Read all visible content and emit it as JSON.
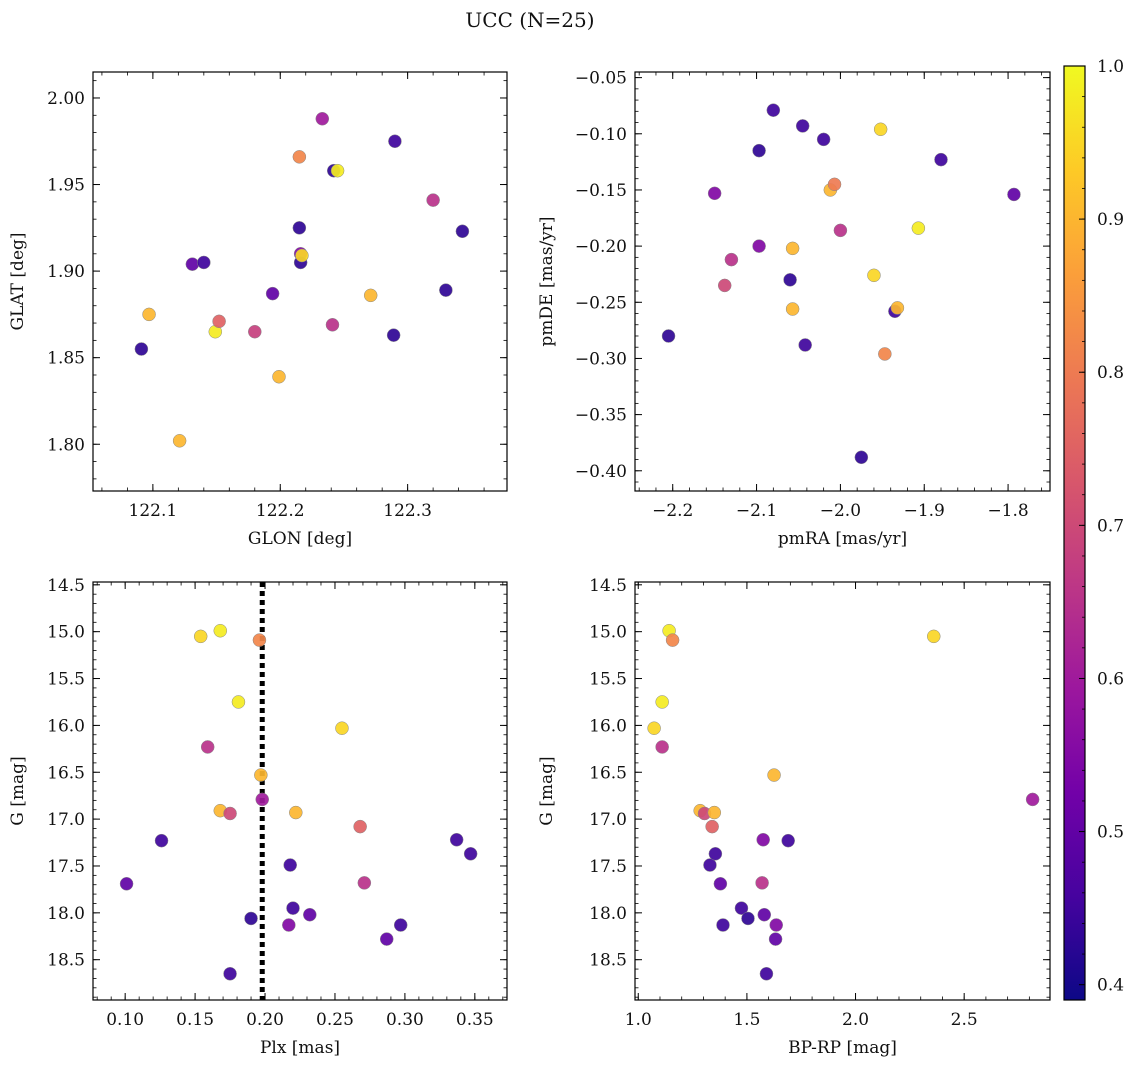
{
  "suptitle": "UCC (N=25)",
  "colorbar": {
    "min": 0.39,
    "max": 1.0,
    "ticks": [
      0.4,
      0.5,
      0.6,
      0.7,
      0.8,
      0.9,
      1.0
    ],
    "tick_labels": [
      "0.4",
      "0.5",
      "0.6",
      "0.7",
      "0.8",
      "0.9",
      "1.0"
    ],
    "colormap": "plasma",
    "colors": [
      "#0d0887",
      "#46039f",
      "#7201a8",
      "#9c179e",
      "#bd3786",
      "#d8576b",
      "#ed7953",
      "#fb9f3a",
      "#fdca26",
      "#f0f921"
    ]
  },
  "chart_data": [
    {
      "type": "scatter",
      "title": "",
      "xlabel": "GLON [deg]",
      "ylabel": "GLAT [deg]",
      "xlim": [
        122.053,
        122.378
      ],
      "ylim": [
        1.773,
        2.015
      ],
      "xticks": [
        122.1,
        122.2,
        122.3
      ],
      "xtick_labels": [
        "122.1",
        "122.2",
        "122.3"
      ],
      "yticks": [
        1.8,
        1.85,
        1.9,
        1.95,
        2.0
      ],
      "ytick_labels": [
        "1.80",
        "1.85",
        "1.90",
        "1.95",
        "2.00"
      ],
      "inverted_y": false,
      "points": [
        {
          "x": 122.091,
          "y": 1.855,
          "c": 0.43
        },
        {
          "x": 122.097,
          "y": 1.875,
          "c": 0.9
        },
        {
          "x": 122.121,
          "y": 1.802,
          "c": 0.9
        },
        {
          "x": 122.131,
          "y": 1.904,
          "c": 0.5
        },
        {
          "x": 122.14,
          "y": 1.905,
          "c": 0.45
        },
        {
          "x": 122.149,
          "y": 1.865,
          "c": 0.98
        },
        {
          "x": 122.152,
          "y": 1.871,
          "c": 0.75
        },
        {
          "x": 122.18,
          "y": 1.865,
          "c": 0.68
        },
        {
          "x": 122.194,
          "y": 1.887,
          "c": 0.5
        },
        {
          "x": 122.199,
          "y": 1.839,
          "c": 0.9
        },
        {
          "x": 122.215,
          "y": 1.925,
          "c": 0.43
        },
        {
          "x": 122.215,
          "y": 1.966,
          "c": 0.82
        },
        {
          "x": 122.216,
          "y": 1.91,
          "c": 0.55
        },
        {
          "x": 122.216,
          "y": 1.905,
          "c": 0.43
        },
        {
          "x": 122.217,
          "y": 1.909,
          "c": 0.95
        },
        {
          "x": 122.233,
          "y": 1.988,
          "c": 0.6
        },
        {
          "x": 122.241,
          "y": 1.869,
          "c": 0.65
        },
        {
          "x": 122.242,
          "y": 1.958,
          "c": 0.43
        },
        {
          "x": 122.245,
          "y": 1.958,
          "c": 0.98
        },
        {
          "x": 122.271,
          "y": 1.886,
          "c": 0.9
        },
        {
          "x": 122.289,
          "y": 1.863,
          "c": 0.43
        },
        {
          "x": 122.29,
          "y": 1.975,
          "c": 0.45
        },
        {
          "x": 122.32,
          "y": 1.941,
          "c": 0.65
        },
        {
          "x": 122.33,
          "y": 1.889,
          "c": 0.43
        },
        {
          "x": 122.343,
          "y": 1.923,
          "c": 0.43
        }
      ]
    },
    {
      "type": "scatter",
      "title": "",
      "xlabel": "pmRA [mas/yr]",
      "ylabel": "pmDE [mas/yr]",
      "xlim": [
        -2.245,
        -1.75
      ],
      "ylim": [
        -0.418,
        -0.045
      ],
      "xticks": [
        -2.2,
        -2.1,
        -2.0,
        -1.9,
        -1.8
      ],
      "xtick_labels": [
        "−2.2",
        "−2.1",
        "−2.0",
        "−1.9",
        "−1.8"
      ],
      "yticks": [
        -0.4,
        -0.35,
        -0.3,
        -0.25,
        -0.2,
        -0.15,
        -0.1,
        -0.05
      ],
      "ytick_labels": [
        "−0.40",
        "−0.35",
        "−0.30",
        "−0.25",
        "−0.20",
        "−0.15",
        "−0.10",
        "−0.05"
      ],
      "inverted_y": false,
      "points": [
        {
          "x": -2.205,
          "y": -0.28,
          "c": 0.43
        },
        {
          "x": -2.15,
          "y": -0.153,
          "c": 0.55
        },
        {
          "x": -2.138,
          "y": -0.235,
          "c": 0.7
        },
        {
          "x": -2.13,
          "y": -0.212,
          "c": 0.65
        },
        {
          "x": -2.097,
          "y": -0.115,
          "c": 0.43
        },
        {
          "x": -2.097,
          "y": -0.2,
          "c": 0.55
        },
        {
          "x": -2.08,
          "y": -0.079,
          "c": 0.45
        },
        {
          "x": -2.06,
          "y": -0.23,
          "c": 0.43
        },
        {
          "x": -2.057,
          "y": -0.202,
          "c": 0.9
        },
        {
          "x": -2.057,
          "y": -0.256,
          "c": 0.9
        },
        {
          "x": -2.045,
          "y": -0.093,
          "c": 0.45
        },
        {
          "x": -2.042,
          "y": -0.288,
          "c": 0.45
        },
        {
          "x": -2.02,
          "y": -0.105,
          "c": 0.45
        },
        {
          "x": -2.012,
          "y": -0.15,
          "c": 0.9
        },
        {
          "x": -2.007,
          "y": -0.145,
          "c": 0.8
        },
        {
          "x": -2.0,
          "y": -0.186,
          "c": 0.65
        },
        {
          "x": -1.975,
          "y": -0.388,
          "c": 0.43
        },
        {
          "x": -1.96,
          "y": -0.226,
          "c": 0.95
        },
        {
          "x": -1.952,
          "y": -0.096,
          "c": 0.95
        },
        {
          "x": -1.947,
          "y": -0.296,
          "c": 0.82
        },
        {
          "x": -1.935,
          "y": -0.258,
          "c": 0.45
        },
        {
          "x": -1.932,
          "y": -0.255,
          "c": 0.9
        },
        {
          "x": -1.907,
          "y": -0.184,
          "c": 0.98
        },
        {
          "x": -1.88,
          "y": -0.123,
          "c": 0.45
        },
        {
          "x": -1.793,
          "y": -0.154,
          "c": 0.5
        }
      ]
    },
    {
      "type": "scatter",
      "title": "",
      "xlabel": "Plx [mas]",
      "ylabel": "G [mag]",
      "xlim": [
        0.077,
        0.373
      ],
      "ylim": [
        18.93,
        14.47
      ],
      "xticks": [
        0.1,
        0.15,
        0.2,
        0.25,
        0.3,
        0.35
      ],
      "xtick_labels": [
        "0.10",
        "0.15",
        "0.20",
        "0.25",
        "0.30",
        "0.35"
      ],
      "yticks": [
        14.5,
        15.0,
        15.5,
        16.0,
        16.5,
        17.0,
        17.5,
        18.0,
        18.5
      ],
      "ytick_labels": [
        "14.5",
        "15.0",
        "15.5",
        "16.0",
        "16.5",
        "17.0",
        "17.5",
        "18.0",
        "18.5"
      ],
      "inverted_y": true,
      "vline": {
        "x": 0.198,
        "style": "dotted"
      },
      "points": [
        {
          "x": 0.101,
          "y": 17.69,
          "c": 0.5
        },
        {
          "x": 0.126,
          "y": 17.23,
          "c": 0.45
        },
        {
          "x": 0.154,
          "y": 15.05,
          "c": 0.95
        },
        {
          "x": 0.159,
          "y": 16.23,
          "c": 0.65
        },
        {
          "x": 0.168,
          "y": 14.99,
          "c": 0.98
        },
        {
          "x": 0.168,
          "y": 16.91,
          "c": 0.9
        },
        {
          "x": 0.175,
          "y": 16.94,
          "c": 0.7
        },
        {
          "x": 0.175,
          "y": 18.65,
          "c": 0.45
        },
        {
          "x": 0.181,
          "y": 15.75,
          "c": 0.98
        },
        {
          "x": 0.19,
          "y": 18.06,
          "c": 0.43
        },
        {
          "x": 0.196,
          "y": 15.09,
          "c": 0.82
        },
        {
          "x": 0.197,
          "y": 16.53,
          "c": 0.9
        },
        {
          "x": 0.198,
          "y": 16.79,
          "c": 0.6
        },
        {
          "x": 0.217,
          "y": 18.13,
          "c": 0.55
        },
        {
          "x": 0.218,
          "y": 17.49,
          "c": 0.45
        },
        {
          "x": 0.22,
          "y": 17.95,
          "c": 0.45
        },
        {
          "x": 0.222,
          "y": 16.93,
          "c": 0.9
        },
        {
          "x": 0.232,
          "y": 18.02,
          "c": 0.5
        },
        {
          "x": 0.255,
          "y": 16.03,
          "c": 0.95
        },
        {
          "x": 0.268,
          "y": 17.08,
          "c": 0.75
        },
        {
          "x": 0.271,
          "y": 17.68,
          "c": 0.65
        },
        {
          "x": 0.287,
          "y": 18.28,
          "c": 0.5
        },
        {
          "x": 0.297,
          "y": 18.13,
          "c": 0.45
        },
        {
          "x": 0.337,
          "y": 17.22,
          "c": 0.45
        },
        {
          "x": 0.347,
          "y": 17.37,
          "c": 0.45
        }
      ]
    },
    {
      "type": "scatter",
      "title": "",
      "xlabel": "BP-RP [mag]",
      "ylabel": "G [mag]",
      "xlim": [
        0.985,
        2.895
      ],
      "ylim": [
        18.93,
        14.47
      ],
      "xticks": [
        1.0,
        1.5,
        2.0,
        2.5
      ],
      "xtick_labels": [
        "1.0",
        "1.5",
        "2.0",
        "2.5"
      ],
      "yticks": [
        14.5,
        15.0,
        15.5,
        16.0,
        16.5,
        17.0,
        17.5,
        18.0,
        18.5
      ],
      "ytick_labels": [
        "14.5",
        "15.0",
        "15.5",
        "16.0",
        "16.5",
        "17.0",
        "17.5",
        "18.0",
        "18.5"
      ],
      "inverted_y": true,
      "points": [
        {
          "x": 1.073,
          "y": 16.03,
          "c": 0.95
        },
        {
          "x": 1.11,
          "y": 15.75,
          "c": 0.98
        },
        {
          "x": 1.11,
          "y": 16.23,
          "c": 0.65
        },
        {
          "x": 1.142,
          "y": 14.99,
          "c": 0.98
        },
        {
          "x": 1.158,
          "y": 15.09,
          "c": 0.82
        },
        {
          "x": 1.285,
          "y": 16.91,
          "c": 0.9
        },
        {
          "x": 1.305,
          "y": 16.94,
          "c": 0.7
        },
        {
          "x": 1.33,
          "y": 17.49,
          "c": 0.45
        },
        {
          "x": 1.34,
          "y": 17.08,
          "c": 0.75
        },
        {
          "x": 1.35,
          "y": 16.93,
          "c": 0.9
        },
        {
          "x": 1.355,
          "y": 17.37,
          "c": 0.45
        },
        {
          "x": 1.378,
          "y": 17.69,
          "c": 0.5
        },
        {
          "x": 1.39,
          "y": 18.13,
          "c": 0.45
        },
        {
          "x": 1.475,
          "y": 17.95,
          "c": 0.45
        },
        {
          "x": 1.505,
          "y": 18.06,
          "c": 0.43
        },
        {
          "x": 1.57,
          "y": 17.68,
          "c": 0.65
        },
        {
          "x": 1.575,
          "y": 17.22,
          "c": 0.55
        },
        {
          "x": 1.58,
          "y": 18.02,
          "c": 0.5
        },
        {
          "x": 1.59,
          "y": 18.65,
          "c": 0.45
        },
        {
          "x": 1.625,
          "y": 16.53,
          "c": 0.9
        },
        {
          "x": 1.632,
          "y": 18.28,
          "c": 0.5
        },
        {
          "x": 1.635,
          "y": 18.13,
          "c": 0.55
        },
        {
          "x": 1.69,
          "y": 17.23,
          "c": 0.45
        },
        {
          "x": 2.36,
          "y": 15.05,
          "c": 0.95
        },
        {
          "x": 2.815,
          "y": 16.79,
          "c": 0.6
        }
      ]
    }
  ]
}
